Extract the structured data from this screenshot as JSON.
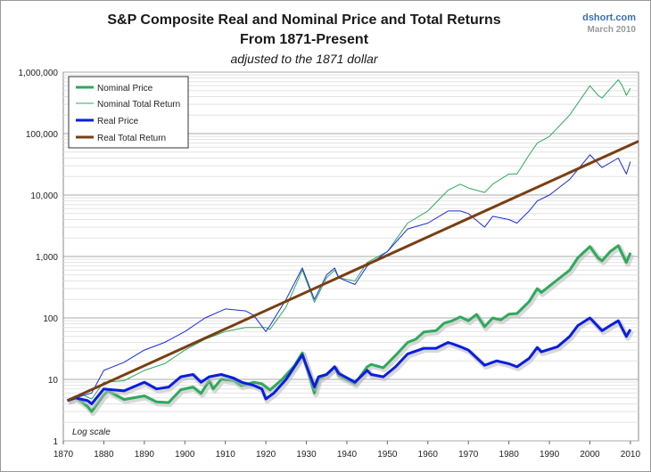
{
  "chart_data": {
    "type": "line",
    "title": "S&P Composite Real and Nominal Price and Total Returns",
    "title_line2": "From 1871-Present",
    "subtitle": "adjusted to the 1871 dollar",
    "source": "dshort.com",
    "date": "March 2010",
    "scale_note": "Log scale",
    "y_scale": "log",
    "ylim": [
      1,
      1000000
    ],
    "xlim": [
      1870,
      2012
    ],
    "y_ticks": [
      1,
      10,
      100,
      1000,
      10000,
      100000,
      1000000
    ],
    "y_tick_labels": [
      "1",
      "10",
      "100",
      "1,000",
      "10,000",
      "100,000",
      "1,000,000"
    ],
    "x_ticks": [
      1870,
      1880,
      1890,
      1900,
      1910,
      1920,
      1930,
      1940,
      1950,
      1960,
      1970,
      1980,
      1990,
      2000,
      2010
    ],
    "x_tick_labels": [
      "1870",
      "1880",
      "1890",
      "1900",
      "1910",
      "1920",
      "1930",
      "1940",
      "1950",
      "1960",
      "1970",
      "1980",
      "1990",
      "2000",
      "2010"
    ],
    "legend_position": "top-left",
    "series": [
      {
        "name": "Nominal Price",
        "color": "#2eaa5c",
        "style": "thick",
        "x": [
          1871,
          1873,
          1876,
          1877,
          1880,
          1881,
          1885,
          1890,
          1893,
          1896,
          1899,
          1902,
          1904,
          1906,
          1907,
          1909,
          1912,
          1914,
          1917,
          1919,
          1921,
          1924,
          1927,
          1929,
          1932,
          1933,
          1935,
          1937,
          1938,
          1942,
          1945,
          1946,
          1949,
          1952,
          1955,
          1957,
          1959,
          1962,
          1964,
          1966,
          1968,
          1970,
          1972,
          1974,
          1976,
          1978,
          1980,
          1982,
          1985,
          1987,
          1988,
          1990,
          1992,
          1995,
          1997,
          2000,
          2002,
          2003,
          2005,
          2007,
          2009,
          2010
        ],
        "values": [
          4.5,
          5.2,
          3.6,
          3.0,
          5.6,
          6.5,
          4.7,
          5.4,
          4.3,
          4.2,
          6.8,
          7.5,
          5.9,
          9.5,
          7.0,
          10.1,
          9.6,
          7.9,
          9.0,
          8.5,
          6.7,
          10.0,
          16.5,
          27.0,
          6.0,
          10.0,
          12.0,
          16.0,
          11.5,
          8.5,
          16.0,
          17.5,
          15.5,
          24.5,
          40.0,
          45.0,
          59.0,
          62.0,
          82.0,
          90.0,
          104.0,
          90.0,
          114.0,
          72.0,
          100.0,
          93.0,
          115.0,
          118.0,
          185.0,
          300.0,
          260.0,
          330.0,
          420.0,
          600.0,
          950.0,
          1450.0,
          950.0,
          850.0,
          1200.0,
          1500.0,
          800.0,
          1150.0
        ]
      },
      {
        "name": "Nominal Total Return",
        "color": "#2eaa5c",
        "style": "thin",
        "x": [
          1871,
          1875,
          1877,
          1880,
          1885,
          1890,
          1895,
          1900,
          1905,
          1910,
          1915,
          1920,
          1921,
          1925,
          1929,
          1932,
          1935,
          1937,
          1938,
          1942,
          1945,
          1950,
          1955,
          1960,
          1965,
          1968,
          1970,
          1974,
          1976,
          1980,
          1982,
          1985,
          1987,
          1990,
          1995,
          2000,
          2002,
          2003,
          2007,
          2008,
          2009,
          2010
        ],
        "values": [
          4.5,
          5.5,
          4.8,
          9.0,
          9.5,
          14.0,
          18.0,
          30.0,
          45.0,
          60.0,
          70.0,
          70.0,
          65.0,
          150.0,
          600.0,
          180.0,
          450.0,
          600.0,
          450.0,
          400.0,
          800.0,
          1200.0,
          3500.0,
          5500.0,
          12000.0,
          15000.0,
          13000.0,
          11000.0,
          15000.0,
          22000.0,
          22000.0,
          45000.0,
          70000.0,
          90000.0,
          200000.0,
          600000.0,
          420000.0,
          380000.0,
          750000.0,
          600000.0,
          420000.0,
          550000.0
        ]
      },
      {
        "name": "Real Price",
        "color": "#0a1ee0",
        "style": "thick",
        "x": [
          1871,
          1873,
          1876,
          1877,
          1880,
          1885,
          1890,
          1893,
          1896,
          1899,
          1902,
          1904,
          1906,
          1909,
          1912,
          1914,
          1917,
          1919,
          1920,
          1922,
          1925,
          1929,
          1932,
          1933,
          1935,
          1937,
          1938,
          1942,
          1945,
          1946,
          1949,
          1952,
          1955,
          1959,
          1962,
          1965,
          1966,
          1968,
          1970,
          1974,
          1977,
          1980,
          1982,
          1985,
          1987,
          1988,
          1992,
          1995,
          1997,
          2000,
          2003,
          2005,
          2007,
          2009,
          2010
        ],
        "values": [
          4.5,
          5.0,
          4.5,
          4.0,
          7.0,
          6.5,
          9.0,
          7.0,
          7.5,
          11.0,
          12.0,
          9.0,
          11.0,
          12.0,
          10.5,
          9.0,
          8.0,
          7.0,
          4.8,
          6.0,
          10.0,
          25.0,
          7.5,
          11.0,
          12.0,
          16.0,
          12.5,
          9.0,
          14.0,
          12.0,
          11.0,
          16.0,
          26.0,
          32.0,
          32.0,
          40.0,
          38.0,
          34.0,
          30.0,
          17.0,
          20.0,
          18.0,
          16.0,
          22.0,
          33.0,
          28.0,
          34.0,
          50.0,
          75.0,
          100.0,
          62.0,
          75.0,
          90.0,
          50.0,
          65.0
        ]
      },
      {
        "name": "Real Total Return",
        "color": "#7a3e12",
        "style": "thick",
        "x": [
          1871,
          2012
        ],
        "values": [
          4.5,
          75000.0
        ]
      },
      {
        "name": "Real Total Return (detail)",
        "legend": false,
        "color": "#1a2ae0",
        "style": "thin",
        "x": [
          1871,
          1875,
          1877,
          1880,
          1885,
          1890,
          1895,
          1900,
          1905,
          1910,
          1915,
          1917,
          1920,
          1921,
          1925,
          1929,
          1932,
          1935,
          1937,
          1938,
          1942,
          1945,
          1950,
          1955,
          1960,
          1965,
          1968,
          1970,
          1974,
          1976,
          1980,
          1982,
          1985,
          1987,
          1990,
          1995,
          2000,
          2003,
          2007,
          2009,
          2010
        ],
        "values": [
          4.5,
          5.5,
          6.0,
          14.0,
          19.0,
          30.0,
          40.0,
          60.0,
          100.0,
          140.0,
          130.0,
          110.0,
          60.0,
          75.0,
          200.0,
          650.0,
          200.0,
          500.0,
          650.0,
          450.0,
          350.0,
          700.0,
          1200.0,
          2800.0,
          3500.0,
          5500.0,
          5500.0,
          5000.0,
          3000.0,
          4500.0,
          4000.0,
          3500.0,
          5500.0,
          8000.0,
          10000.0,
          18000.0,
          45000.0,
          28000.0,
          40000.0,
          22000.0,
          35000.0
        ]
      }
    ]
  }
}
